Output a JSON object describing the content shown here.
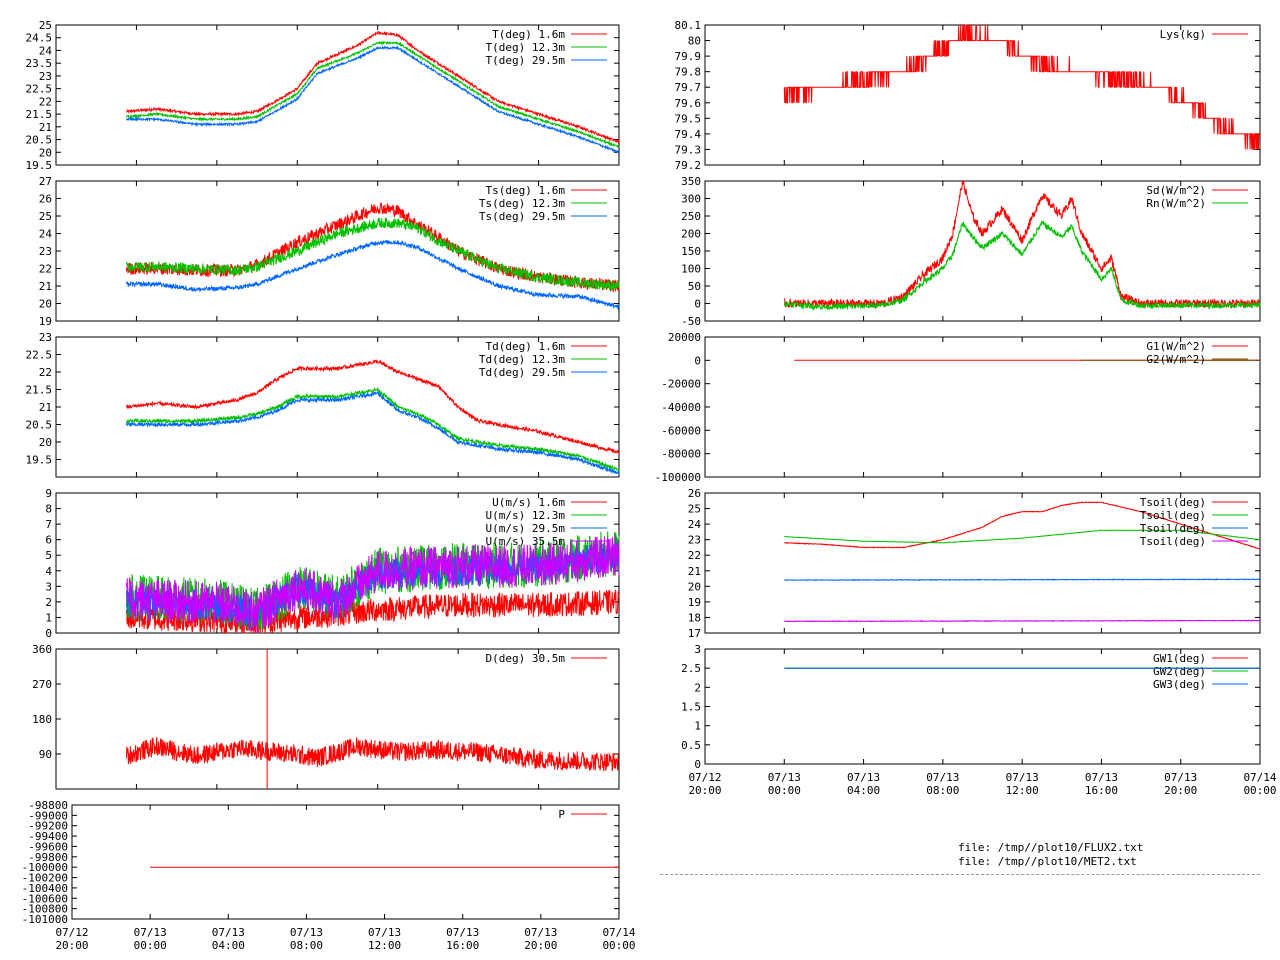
{
  "files": [
    "file: /tmp//plot10/FLUX2.txt",
    "file: /tmp//plot10/MET2.txt"
  ],
  "time_ticks": [
    {
      "t": 0,
      "l1": "07/12",
      "l2": "20:00"
    },
    {
      "t": 4,
      "l1": "07/13",
      "l2": "00:00"
    },
    {
      "t": 8,
      "l1": "07/13",
      "l2": "04:00"
    },
    {
      "t": 12,
      "l1": "07/13",
      "l2": "08:00"
    },
    {
      "t": 16,
      "l1": "07/13",
      "l2": "12:00"
    },
    {
      "t": 20,
      "l1": "07/13",
      "l2": "16:00"
    },
    {
      "t": 24,
      "l1": "07/13",
      "l2": "20:00"
    },
    {
      "t": 28,
      "l1": "07/14",
      "l2": "00:00"
    }
  ],
  "chart_data": [
    {
      "id": "temperature",
      "type": "line",
      "column": "left",
      "xlim": [
        0,
        28
      ],
      "ylim": [
        19.5,
        25
      ],
      "yticks": [
        "25",
        "24.5",
        "24",
        "23.5",
        "23",
        "22.5",
        "22",
        "21.5",
        "21",
        "20.5",
        "20",
        "19.5"
      ],
      "series": [
        {
          "name": "T(deg)  1.6m",
          "color": "#ff0000",
          "noise": 0.05,
          "x": [
            3.5,
            5,
            7,
            9,
            10,
            12,
            13,
            15,
            16,
            17,
            18,
            20,
            22,
            24,
            26,
            28
          ],
          "y": [
            21.6,
            21.7,
            21.5,
            21.5,
            21.6,
            22.5,
            23.5,
            24.2,
            24.7,
            24.6,
            24.0,
            23.0,
            22.0,
            21.5,
            21.0,
            20.4
          ]
        },
        {
          "name": "T(deg) 12.3m",
          "color": "#00c000",
          "noise": 0.04,
          "x": [
            3.5,
            5,
            7,
            9,
            10,
            12,
            13,
            15,
            16,
            17,
            18,
            20,
            22,
            24,
            26,
            28
          ],
          "y": [
            21.4,
            21.5,
            21.3,
            21.3,
            21.4,
            22.3,
            23.3,
            23.9,
            24.3,
            24.3,
            23.8,
            22.8,
            21.8,
            21.3,
            20.8,
            20.2
          ]
        },
        {
          "name": "T(deg) 29.5m",
          "color": "#0066ff",
          "noise": 0.04,
          "x": [
            3.5,
            5,
            7,
            9,
            10,
            12,
            13,
            15,
            16,
            17,
            18,
            20,
            22,
            24,
            26,
            28
          ],
          "y": [
            21.3,
            21.3,
            21.1,
            21.1,
            21.2,
            22.1,
            23.1,
            23.7,
            24.1,
            24.1,
            23.6,
            22.6,
            21.6,
            21.1,
            20.6,
            20.0
          ]
        }
      ]
    },
    {
      "id": "surface-temperature",
      "type": "line",
      "column": "left",
      "xlim": [
        0,
        28
      ],
      "ylim": [
        19,
        27
      ],
      "yticks": [
        "27",
        "26",
        "25",
        "24",
        "23",
        "22",
        "21",
        "20",
        "19"
      ],
      "series": [
        {
          "name": "Ts(deg)  1.6m",
          "color": "#ff0000",
          "noise": 0.35,
          "x": [
            3.5,
            5,
            7,
            9,
            10,
            12,
            14,
            16,
            17,
            18,
            19,
            20,
            22,
            24,
            26,
            28
          ],
          "y": [
            22.0,
            22.0,
            21.9,
            21.9,
            22.2,
            23.5,
            24.5,
            25.5,
            25.3,
            24.5,
            23.8,
            23.0,
            22.0,
            21.5,
            21.2,
            21.0
          ]
        },
        {
          "name": "Ts(deg) 12.3m",
          "color": "#00c000",
          "noise": 0.3,
          "x": [
            3.5,
            5,
            7,
            9,
            10,
            12,
            14,
            16,
            17,
            18,
            19,
            20,
            22,
            24,
            26,
            28
          ],
          "y": [
            22.1,
            22.1,
            22.0,
            21.9,
            22.1,
            23.0,
            24.0,
            24.6,
            24.6,
            24.3,
            23.6,
            23.0,
            22.0,
            21.5,
            21.2,
            21.0
          ]
        },
        {
          "name": "Ts(deg) 29.5m",
          "color": "#0066ff",
          "noise": 0.12,
          "x": [
            3.5,
            5,
            7,
            9,
            10,
            12,
            14,
            16,
            17,
            18,
            19,
            20,
            22,
            24,
            26,
            28
          ],
          "y": [
            21.1,
            21.1,
            20.8,
            20.9,
            21.1,
            22.0,
            22.8,
            23.5,
            23.5,
            23.2,
            22.6,
            22.0,
            21.0,
            20.5,
            20.4,
            19.8
          ]
        }
      ]
    },
    {
      "id": "dewpoint-temperature",
      "type": "line",
      "column": "left",
      "xlim": [
        0,
        28
      ],
      "ylim": [
        19,
        23
      ],
      "yticks": [
        "23",
        "22.5",
        "22",
        "21.5",
        "21",
        "20.5",
        "20",
        "19.5"
      ],
      "series": [
        {
          "name": "Td(deg)  1.6m",
          "color": "#ff0000",
          "noise": 0.05,
          "x": [
            3.5,
            5,
            7,
            9,
            10,
            11,
            12,
            14,
            16,
            17,
            18,
            19,
            20,
            21,
            22,
            24,
            26,
            28
          ],
          "y": [
            21.0,
            21.1,
            21.0,
            21.2,
            21.4,
            21.8,
            22.1,
            22.1,
            22.3,
            22.0,
            21.8,
            21.6,
            21.0,
            20.6,
            20.5,
            20.3,
            20.0,
            19.7
          ]
        },
        {
          "name": "Td(deg) 12.3m",
          "color": "#00c000",
          "noise": 0.05,
          "x": [
            3.5,
            5,
            7,
            9,
            10,
            11,
            12,
            14,
            16,
            17,
            18,
            19,
            20,
            21,
            22,
            24,
            26,
            28
          ],
          "y": [
            20.6,
            20.6,
            20.6,
            20.7,
            20.8,
            21.0,
            21.3,
            21.3,
            21.5,
            21.0,
            20.8,
            20.5,
            20.1,
            20.0,
            19.9,
            19.8,
            19.6,
            19.2
          ]
        },
        {
          "name": "Td(deg) 29.5m",
          "color": "#0066ff",
          "noise": 0.05,
          "x": [
            3.5,
            5,
            7,
            9,
            10,
            11,
            12,
            14,
            16,
            17,
            18,
            19,
            20,
            21,
            22,
            24,
            26,
            28
          ],
          "y": [
            20.5,
            20.5,
            20.5,
            20.6,
            20.7,
            20.9,
            21.2,
            21.2,
            21.4,
            20.9,
            20.7,
            20.4,
            20.0,
            19.9,
            19.8,
            19.7,
            19.5,
            19.1
          ]
        }
      ]
    },
    {
      "id": "wind-speed",
      "type": "line",
      "column": "left",
      "xlim": [
        0,
        28
      ],
      "ylim": [
        0,
        9
      ],
      "yticks": [
        "9",
        "8",
        "7",
        "6",
        "5",
        "4",
        "3",
        "2",
        "1",
        "0"
      ],
      "legend_hidden_last": true,
      "series": [
        {
          "name": "U(m/s)  1.6m",
          "color": "#ff0000",
          "noise": 0.8,
          "x": [
            3.5,
            8,
            10,
            12,
            14,
            16,
            20,
            24,
            28
          ],
          "y": [
            1.0,
            0.8,
            0.6,
            1.0,
            1.2,
            1.5,
            1.8,
            1.8,
            2.0
          ]
        },
        {
          "name": "U(m/s) 12.3m",
          "color": "#00c000",
          "noise": 1.5,
          "x": [
            3.5,
            8,
            10,
            12,
            14,
            16,
            20,
            24,
            28
          ],
          "y": [
            2.3,
            2.0,
            1.4,
            3.0,
            2.2,
            4.0,
            4.3,
            4.4,
            5.2
          ]
        },
        {
          "name": "U(m/s) 29.5m",
          "color": "#0066ff",
          "noise": 1.0,
          "x": [
            3.5,
            8,
            10,
            12,
            14,
            16,
            20,
            24,
            28
          ],
          "y": [
            2.0,
            1.8,
            1.3,
            2.8,
            2.0,
            3.8,
            4.0,
            4.2,
            5.0
          ]
        },
        {
          "name": "U(m/s) 35.5m",
          "color": "#cc00ff",
          "noise": 1.4,
          "x": [
            3.5,
            8,
            10,
            12,
            14,
            16,
            20,
            24,
            28
          ],
          "y": [
            2.2,
            1.9,
            1.3,
            3.0,
            2.0,
            4.0,
            4.3,
            4.3,
            5.0
          ]
        }
      ]
    },
    {
      "id": "wind-direction",
      "type": "line",
      "column": "left",
      "xlim": [
        0,
        28
      ],
      "ylim": [
        0,
        360
      ],
      "yticks": [
        "360",
        "270",
        "180",
        "90"
      ],
      "series": [
        {
          "name": "D(deg)  30.5m",
          "color": "#ff0000",
          "noise": 25,
          "spike": {
            "x": 10.5,
            "y": 360
          },
          "x": [
            3.5,
            5,
            7,
            9,
            11,
            13,
            15,
            17,
            19,
            21,
            24,
            28
          ],
          "y": [
            85,
            110,
            85,
            105,
            95,
            80,
            110,
            95,
            100,
            95,
            75,
            70
          ]
        }
      ]
    },
    {
      "id": "pressure",
      "type": "line",
      "column": "left",
      "xlim": [
        0,
        28
      ],
      "ylim": [
        -101000,
        -98800
      ],
      "yticks": [
        "-101000",
        "-100800",
        "-100600",
        "-100400",
        "-100200",
        "-100000",
        "-99800",
        "-99600",
        "-99400",
        "-99200",
        "-99000",
        "-98800"
      ],
      "series": [
        {
          "name": "P",
          "color": "#ff0000",
          "noise": 0,
          "x": [
            4,
            28
          ],
          "y": [
            -100000,
            -100000
          ]
        }
      ]
    },
    {
      "id": "lysimeter",
      "type": "line",
      "column": "right",
      "xlim": [
        0,
        28
      ],
      "ylim": [
        79.2,
        80.1
      ],
      "yticks": [
        "80.1",
        "80",
        "79.9",
        "79.8",
        "79.7",
        "79.6",
        "79.5",
        "79.4",
        "79.3",
        "79.2"
      ],
      "step": 0.1,
      "series": [
        {
          "name": "Lys(kg)",
          "color": "#ff0000",
          "noise": 0.04,
          "x": [
            4,
            6,
            8,
            10,
            12,
            13,
            15,
            16,
            17,
            19,
            21,
            23,
            25,
            26,
            28
          ],
          "y": [
            79.65,
            79.7,
            79.75,
            79.8,
            79.95,
            80.05,
            80.0,
            79.9,
            79.85,
            79.8,
            79.75,
            79.7,
            79.55,
            79.45,
            79.35
          ]
        }
      ]
    },
    {
      "id": "radiation",
      "type": "line",
      "column": "right",
      "xlim": [
        0,
        28
      ],
      "ylim": [
        -50,
        350
      ],
      "yticks": [
        "350",
        "300",
        "250",
        "200",
        "150",
        "100",
        "50",
        "0",
        "-50"
      ],
      "series": [
        {
          "name": "Sd(W/m^2)",
          "color": "#ff0000",
          "noise": 12,
          "x": [
            4,
            9,
            10,
            11,
            12,
            12.5,
            13,
            13.5,
            14,
            15,
            16,
            17,
            18,
            18.5,
            19,
            20,
            20.5,
            21,
            22,
            24,
            28
          ],
          "y": [
            0,
            0,
            20,
            80,
            130,
            200,
            350,
            250,
            200,
            270,
            180,
            310,
            250,
            300,
            200,
            100,
            130,
            20,
            0,
            0,
            0
          ]
        },
        {
          "name": "Rn(W/m^2)",
          "color": "#00c000",
          "noise": 8,
          "x": [
            4,
            6,
            9,
            10,
            11,
            12,
            12.5,
            13,
            13.5,
            14,
            15,
            16,
            17,
            18,
            18.5,
            19,
            20,
            20.5,
            21,
            22,
            24,
            28
          ],
          "y": [
            0,
            -10,
            -5,
            10,
            60,
            100,
            140,
            230,
            190,
            160,
            200,
            140,
            230,
            190,
            220,
            150,
            70,
            100,
            10,
            -5,
            -5,
            -5
          ]
        }
      ]
    },
    {
      "id": "ground-flux",
      "type": "line",
      "column": "right",
      "xlim": [
        0,
        28
      ],
      "ylim": [
        -100000,
        20000
      ],
      "yticks": [
        "20000",
        "0",
        "-20000",
        "-40000",
        "-60000",
        "-80000",
        "-100000"
      ],
      "series": [
        {
          "name": "G1(W/m^2)",
          "color": "#ff0000",
          "noise": 0,
          "x": [
            4.5,
            28
          ],
          "y": [
            0,
            0
          ]
        },
        {
          "name": "G2(W/m^2)",
          "color": "#805000",
          "noise": 0,
          "x": [
            19,
            28
          ],
          "y": [
            0,
            0
          ]
        }
      ]
    },
    {
      "id": "soil-temperature",
      "type": "line",
      "column": "right",
      "xlim": [
        0,
        28
      ],
      "ylim": [
        17,
        26
      ],
      "yticks": [
        "26",
        "25",
        "24",
        "23",
        "22",
        "21",
        "20",
        "19",
        "18",
        "17"
      ],
      "series": [
        {
          "name": "Tsoil(deg)",
          "color": "#ff0000",
          "noise": 0.02,
          "x": [
            4,
            6,
            8,
            10,
            12,
            14,
            15,
            16,
            17,
            18,
            19,
            20,
            22,
            24,
            26,
            28
          ],
          "y": [
            22.8,
            22.7,
            22.5,
            22.5,
            23.0,
            23.8,
            24.5,
            24.8,
            24.8,
            25.2,
            25.4,
            25.4,
            24.8,
            24.0,
            23.2,
            22.4
          ]
        },
        {
          "name": "Tsoil(deg)",
          "color": "#00c000",
          "noise": 0.01,
          "x": [
            4,
            8,
            12,
            16,
            20,
            24,
            28
          ],
          "y": [
            23.2,
            22.9,
            22.8,
            23.1,
            23.6,
            23.6,
            23.0
          ]
        },
        {
          "name": "Tsoil(deg)",
          "color": "#0066ff",
          "noise": 0.02,
          "x": [
            4,
            28
          ],
          "y": [
            20.4,
            20.45
          ]
        },
        {
          "name": "Tsoil(deg)",
          "color": "#cc00ff",
          "noise": 0.02,
          "x": [
            4,
            28
          ],
          "y": [
            17.75,
            17.8
          ]
        }
      ]
    },
    {
      "id": "groundwater",
      "type": "line",
      "column": "right",
      "xlim": [
        0,
        28
      ],
      "ylim": [
        0,
        3
      ],
      "yticks": [
        "3",
        "2.5",
        "2",
        "1.5",
        "1",
        "0.5",
        "0"
      ],
      "series": [
        {
          "name": "GW1(deg)",
          "color": "#ff0000",
          "noise": 0,
          "x": [
            4,
            28
          ],
          "y": [
            2.5,
            2.5
          ]
        },
        {
          "name": "GW2(deg)",
          "color": "#00c000",
          "noise": 0,
          "x": [
            4,
            28
          ],
          "y": [
            2.5,
            2.5
          ]
        },
        {
          "name": "GW3(deg)",
          "color": "#0066ff",
          "noise": 0,
          "x": [
            4,
            28
          ],
          "y": [
            2.5,
            2.5
          ]
        }
      ]
    }
  ]
}
